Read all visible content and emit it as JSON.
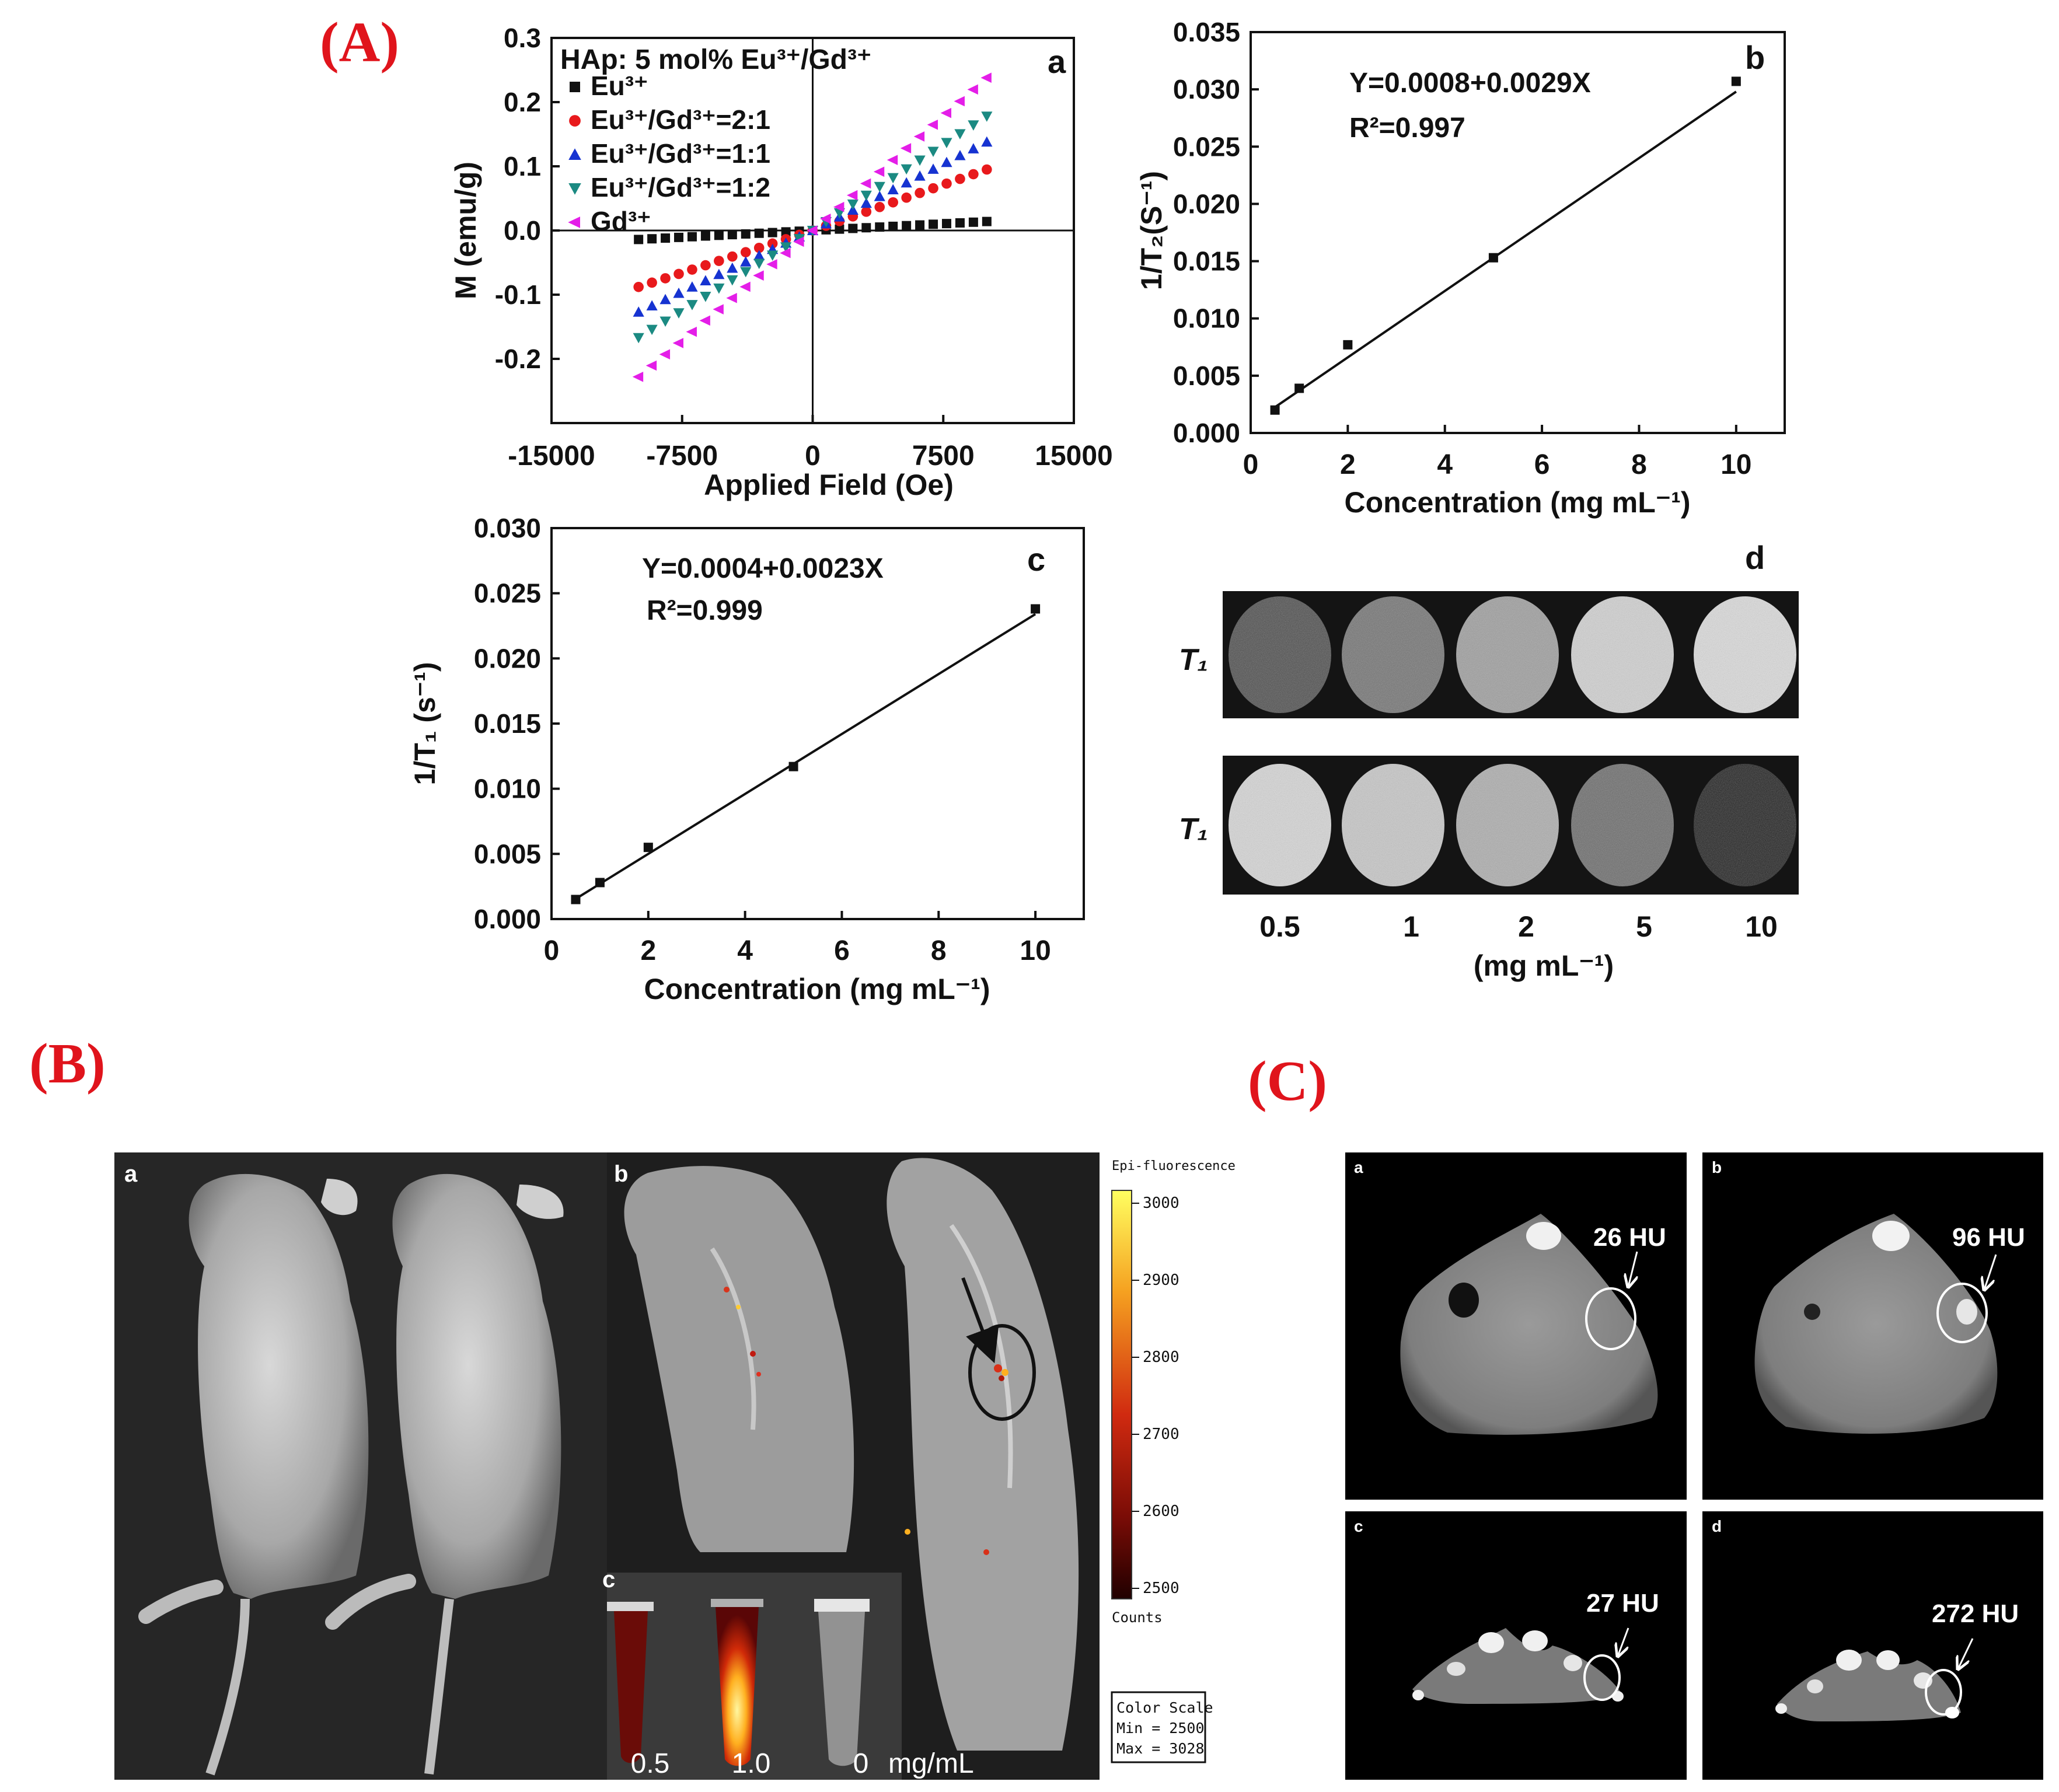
{
  "panel_labels": {
    "A": "(A)",
    "B": "(B)",
    "C": "(C)"
  },
  "chart_data": [
    {
      "id": "a",
      "type": "scatter",
      "panel_letter": "a",
      "legend_title": "HAp: 5 mol% Eu³⁺/Gd³⁺",
      "xlabel": "Applied Field (Oe)",
      "ylabel": "M (emu/g)",
      "xlim": [
        -15000,
        15000
      ],
      "ylim": [
        -0.3,
        0.3
      ],
      "xticks": [
        -15000,
        -7500,
        0,
        7500,
        15000
      ],
      "xtick_labels": [
        "-15000",
        "-7500",
        "0",
        "7500",
        "15000"
      ],
      "yticks": [
        -0.2,
        -0.1,
        0.0,
        0.1,
        0.2,
        0.3
      ],
      "ytick_labels": [
        "-0.2",
        "-0.1",
        "0.0",
        "0.1",
        "0.2",
        "0.3"
      ],
      "legend_position": "top-left",
      "field_range": [
        -10000,
        10000
      ],
      "series": [
        {
          "name": "Eu³⁺",
          "marker": "square",
          "color": "#111111",
          "x": [
            -10000,
            0,
            10000
          ],
          "y": [
            -0.014,
            0.0,
            0.014
          ]
        },
        {
          "name": "Eu³⁺/Gd³⁺=2:1",
          "marker": "circle",
          "color": "#e8191c",
          "x": [
            -10000,
            0,
            10000
          ],
          "y": [
            -0.088,
            0.0,
            0.095
          ]
        },
        {
          "name": "Eu³⁺/Gd³⁺=1:1",
          "marker": "triangle-up",
          "color": "#1633d1",
          "x": [
            -10000,
            0,
            10000
          ],
          "y": [
            -0.127,
            0.0,
            0.138
          ]
        },
        {
          "name": "Eu³⁺/Gd³⁺=1:2",
          "marker": "triangle-down",
          "color": "#1b8a82",
          "x": [
            -10000,
            0,
            10000
          ],
          "y": [
            -0.167,
            0.0,
            0.178
          ]
        },
        {
          "name": "Gd³⁺",
          "marker": "triangle-left",
          "color": "#e41ee8",
          "x": [
            -10000,
            0,
            10000
          ],
          "y": [
            -0.228,
            0.0,
            0.238
          ]
        }
      ]
    },
    {
      "id": "b",
      "type": "scatter",
      "panel_letter": "b",
      "xlabel": "Concentration (mg mL⁻¹)",
      "ylabel": "1/T₂(S⁻¹)",
      "xlim": [
        0,
        11
      ],
      "ylim": [
        0,
        0.035
      ],
      "xticks": [
        0,
        2,
        4,
        6,
        8,
        10
      ],
      "xtick_labels": [
        "0",
        "2",
        "4",
        "6",
        "8",
        "10"
      ],
      "yticks": [
        0,
        0.005,
        0.01,
        0.015,
        0.02,
        0.025,
        0.03,
        0.035
      ],
      "ytick_labels": [
        "0.000",
        "0.005",
        "0.010",
        "0.015",
        "0.020",
        "0.025",
        "0.030",
        "0.035"
      ],
      "equation": "Y=0.0008+0.0029X",
      "r2": "R²=0.997",
      "fit": {
        "intercept": 0.0008,
        "slope": 0.0029,
        "x_range": [
          0.5,
          10
        ]
      },
      "series": [
        {
          "x": [
            0.5,
            1,
            2,
            5,
            10
          ],
          "y": [
            0.002,
            0.0039,
            0.0077,
            0.0153,
            0.0307
          ]
        }
      ]
    },
    {
      "id": "c",
      "type": "scatter",
      "panel_letter": "c",
      "xlabel": "Concentration (mg mL⁻¹)",
      "ylabel": "1/T₁ (s⁻¹)",
      "xlim": [
        0,
        11
      ],
      "ylim": [
        0,
        0.03
      ],
      "xticks": [
        0,
        2,
        4,
        6,
        8,
        10
      ],
      "xtick_labels": [
        "0",
        "2",
        "4",
        "6",
        "8",
        "10"
      ],
      "yticks": [
        0,
        0.005,
        0.01,
        0.015,
        0.02,
        0.025,
        0.03
      ],
      "ytick_labels": [
        "0.000",
        "0.005",
        "0.010",
        "0.015",
        "0.020",
        "0.025",
        "0.030"
      ],
      "equation": "Y=0.0004+0.0023X",
      "r2": "R²=0.999",
      "fit": {
        "intercept": 0.0004,
        "slope": 0.0023,
        "x_range": [
          0.5,
          10
        ]
      },
      "series": [
        {
          "x": [
            0.5,
            1,
            2,
            5,
            10
          ],
          "y": [
            0.0015,
            0.0028,
            0.0055,
            0.0117,
            0.0238
          ]
        }
      ]
    }
  ],
  "mri": {
    "panel_letter": "d",
    "row_label": "T₁",
    "row1_brightness": [
      0.3,
      0.45,
      0.62,
      0.82,
      0.86
    ],
    "row2_brightness": [
      0.84,
      0.78,
      0.68,
      0.42,
      0.12
    ],
    "concentrations": [
      "0.5",
      "1",
      "2",
      "5",
      "10"
    ],
    "unit": "(mg mL⁻¹)"
  },
  "fluor": {
    "sub_a": "a",
    "sub_b": "b",
    "sub_c": "c",
    "scale_title": "Epi-fluorescence",
    "scale_ticks": [
      "3000",
      "2900",
      "2800",
      "2700",
      "2600",
      "2500"
    ],
    "scale_unit": "Counts",
    "color_scale_lines": [
      "Color Scale",
      "Min = 2500",
      "Max = 3028"
    ],
    "tube_labels": [
      "0.5",
      "1.0",
      "0"
    ],
    "tube_unit": "mg/mL"
  },
  "ct": {
    "panels": [
      {
        "letter": "a",
        "hu": "26 HU"
      },
      {
        "letter": "b",
        "hu": "96 HU"
      },
      {
        "letter": "c",
        "hu": "27 HU"
      },
      {
        "letter": "d",
        "hu": "272 HU"
      }
    ]
  }
}
